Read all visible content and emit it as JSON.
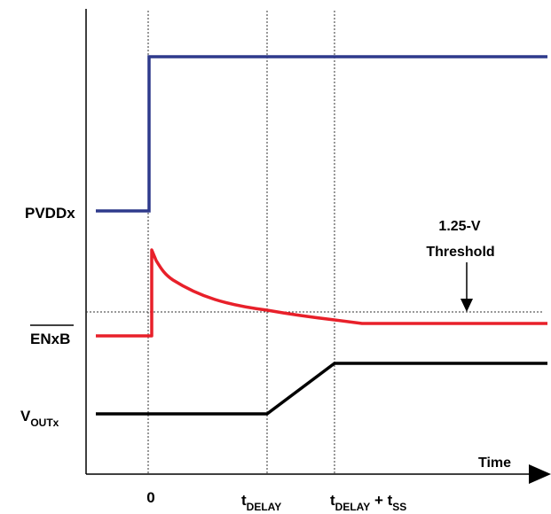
{
  "diagram": {
    "signals": {
      "pvdd": {
        "label": "PVDDx"
      },
      "en": {
        "label": "ENxB"
      },
      "vout": {
        "label_main": "V",
        "label_sub": "OUTx"
      }
    },
    "threshold": {
      "line1": "1.25-V",
      "line2": "Threshold"
    },
    "time_axis": {
      "label": "Time",
      "tick_zero": "0",
      "tick_delay": {
        "main": "t",
        "sub": "DELAY"
      },
      "tick_delay_ss": {
        "main1": "t",
        "sub1": "DELAY",
        "plus": " + t",
        "sub2": "SS"
      }
    },
    "colors": {
      "pvdd": "#2e3a8c",
      "en": "#e8202a",
      "vout": "#000000",
      "axis": "#000000",
      "guide": "#333333"
    }
  }
}
